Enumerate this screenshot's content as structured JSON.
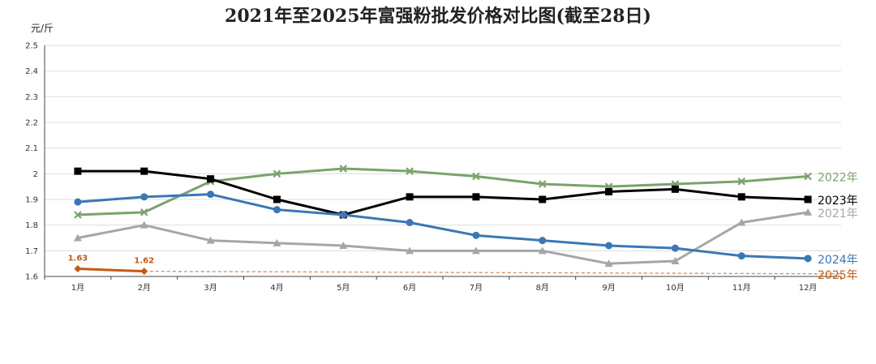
{
  "chart_data": {
    "type": "line",
    "title": "2021年至2025年富强粉批发价格对比图(截至28日)",
    "ylabel": "元/斤",
    "xlabel": "",
    "ylim": [
      1.6,
      2.5
    ],
    "yticks": [
      "1.6",
      "1.7",
      "1.8",
      "1.9",
      "2",
      "2.1",
      "2.2",
      "2.3",
      "2.4",
      "2.5"
    ],
    "categories": [
      "1月",
      "2月",
      "3月",
      "4月",
      "5月",
      "6月",
      "7月",
      "8月",
      "9月",
      "10月",
      "11月",
      "12月"
    ],
    "grid": "horizontal",
    "series": [
      {
        "name": "2021年",
        "color": "#a6a6a6",
        "marker": "triangle",
        "values": [
          1.75,
          1.8,
          1.74,
          1.73,
          1.72,
          1.7,
          1.7,
          1.7,
          1.65,
          1.66,
          1.81,
          1.85
        ]
      },
      {
        "name": "2022年",
        "color": "#7aa36c",
        "marker": "x",
        "values": [
          1.84,
          1.85,
          1.97,
          2.0,
          2.02,
          2.01,
          1.99,
          1.96,
          1.95,
          1.96,
          1.97,
          1.99
        ]
      },
      {
        "name": "2023年",
        "color": "#000000",
        "marker": "square",
        "values": [
          2.01,
          2.01,
          1.98,
          1.9,
          1.84,
          1.91,
          1.91,
          1.9,
          1.93,
          1.94,
          1.91,
          1.9
        ]
      },
      {
        "name": "2024年",
        "color": "#3a78b5",
        "marker": "circle",
        "values": [
          1.89,
          1.91,
          1.92,
          1.86,
          1.84,
          1.81,
          1.76,
          1.74,
          1.72,
          1.71,
          1.68,
          1.67
        ]
      },
      {
        "name": "2025年",
        "color": "#c55a11",
        "marker": "diamond",
        "values": [
          1.63,
          1.62,
          null,
          null,
          null,
          null,
          null,
          null,
          null,
          null,
          null,
          null
        ],
        "data_labels": [
          "1.63",
          "1.62"
        ],
        "trend_to": 1.61
      }
    ]
  }
}
